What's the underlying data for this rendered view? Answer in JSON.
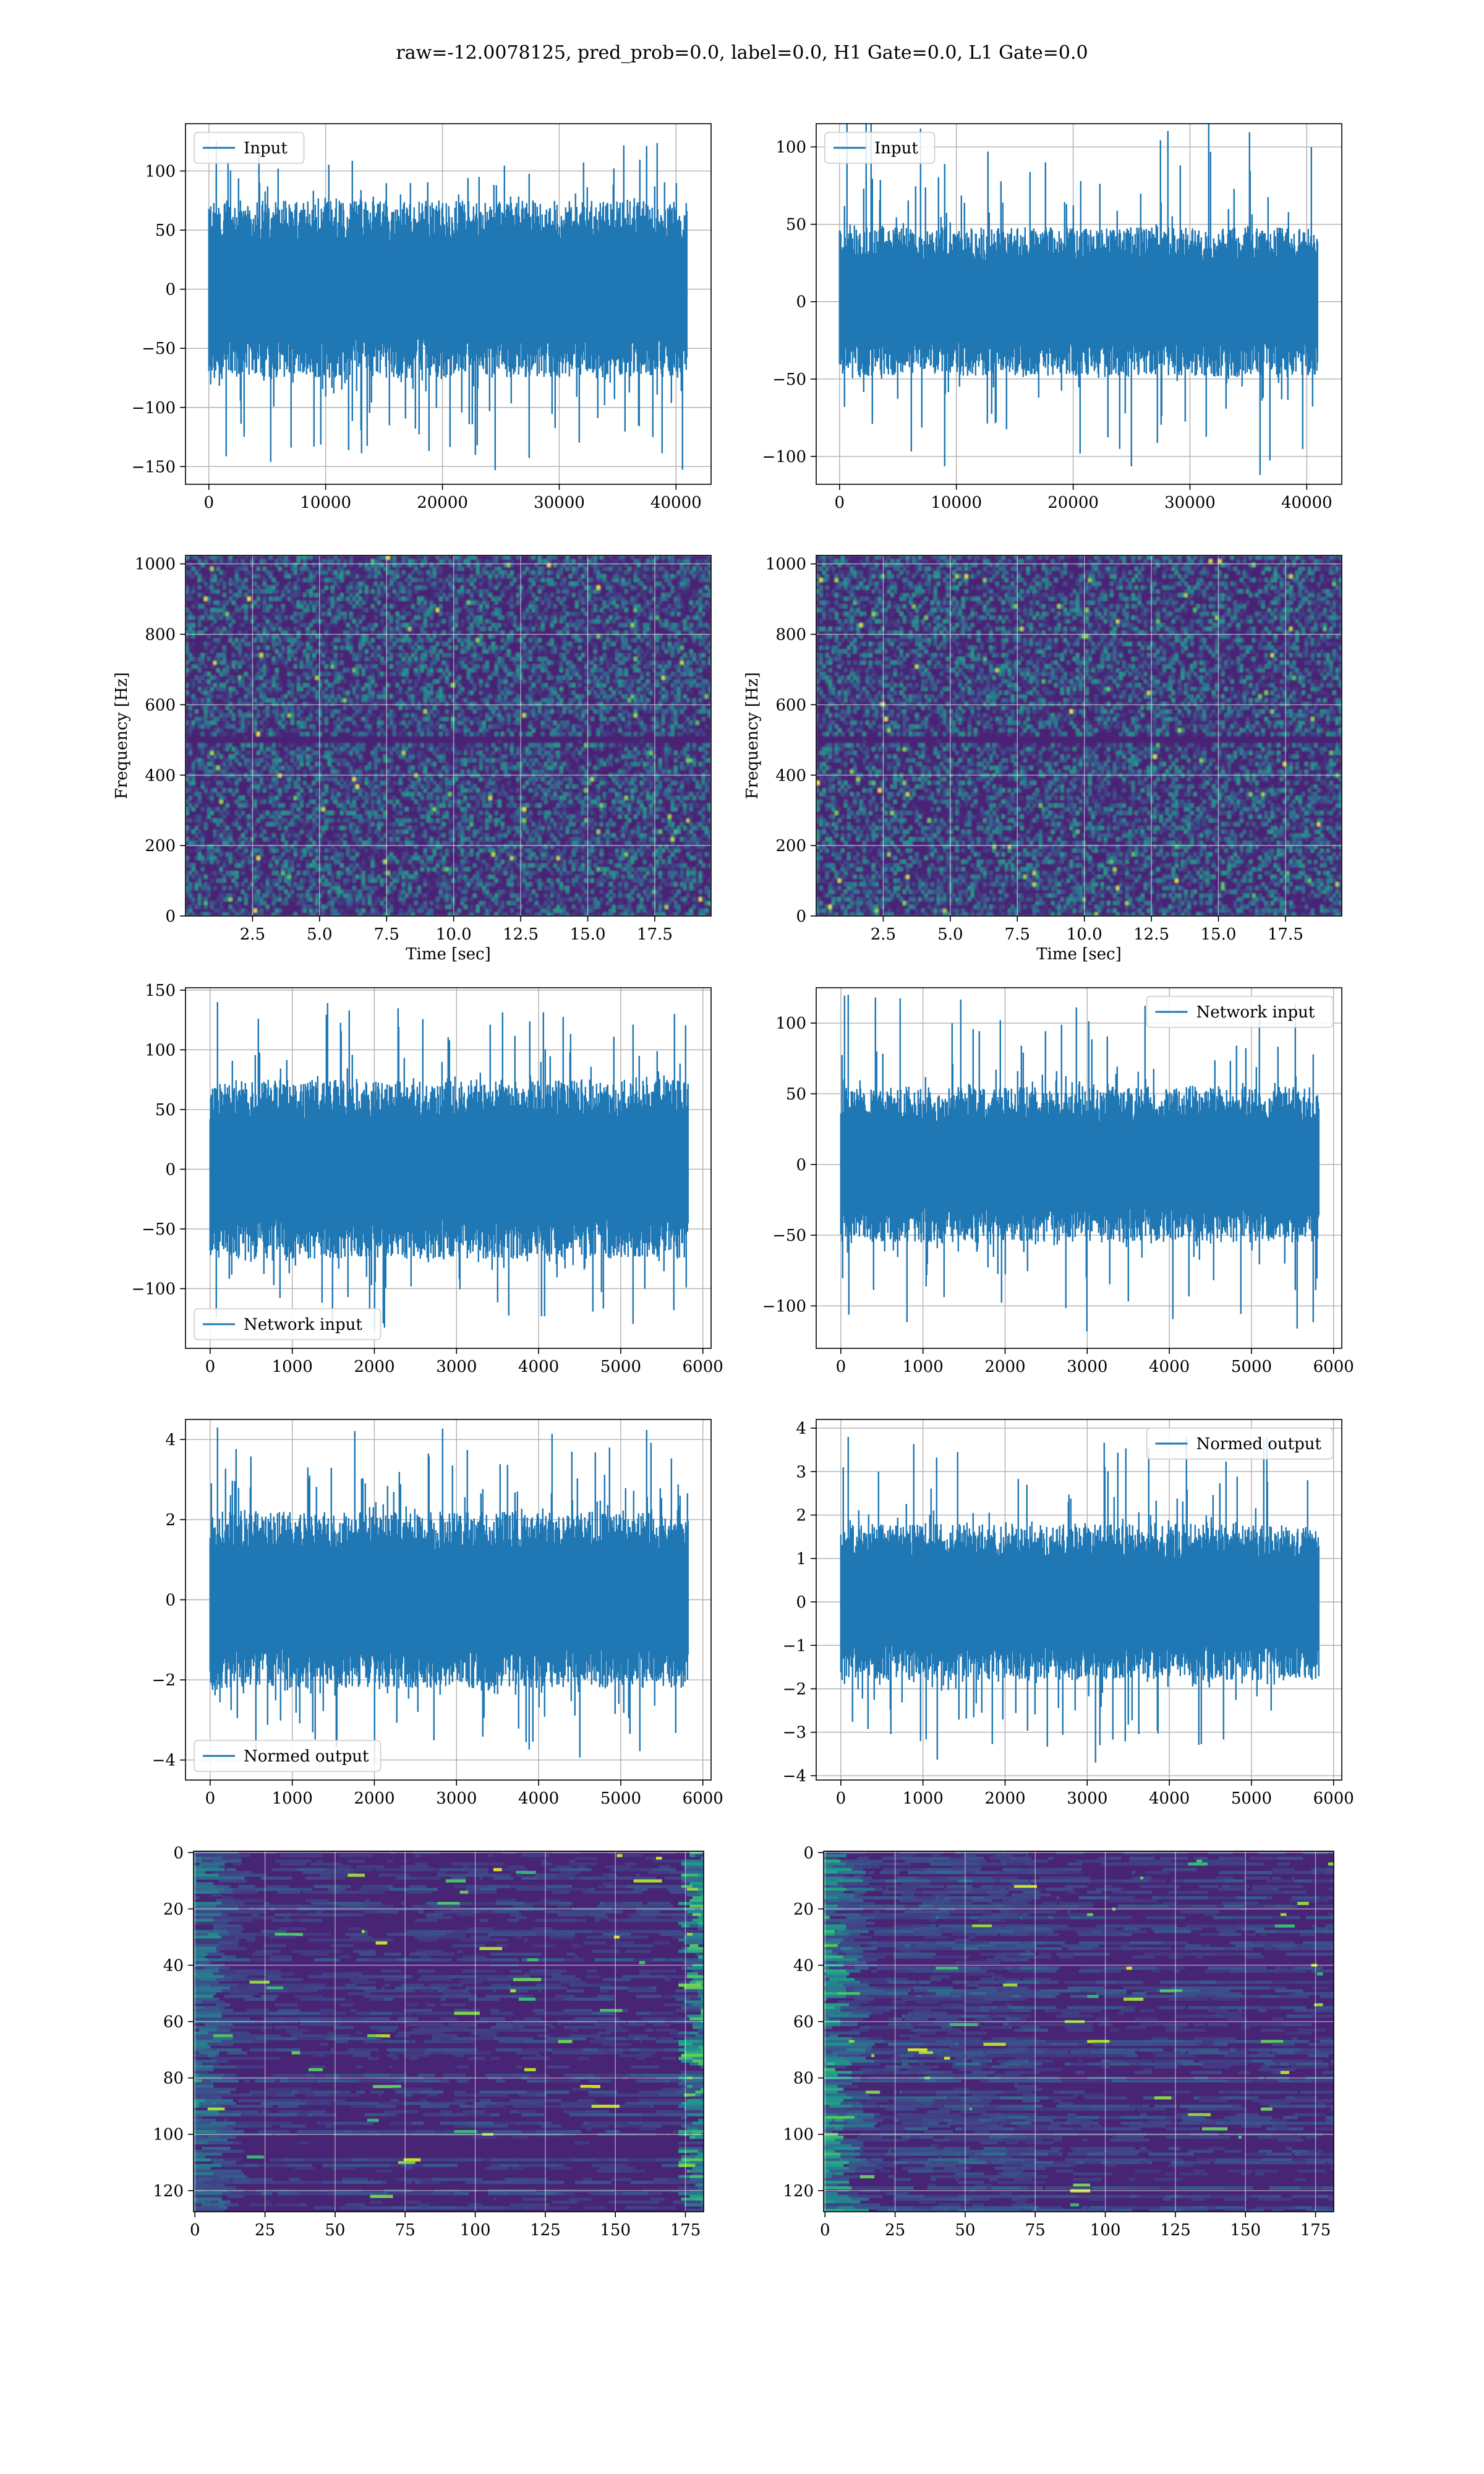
{
  "figure": {
    "suptitle": "raw=-12.0078125, pred_prob=0.0, label=0.0, H1 Gate=0.0, L1 Gate=0.0",
    "colors": {
      "line": "#1f77b4",
      "grid": "#b0b0b0",
      "viridis": [
        "#440154",
        "#482878",
        "#3e4989",
        "#31688e",
        "#26828e",
        "#1f9e89",
        "#35b779",
        "#6ece58",
        "#b5de2b",
        "#fde725"
      ]
    }
  },
  "chart_data": [
    {
      "id": "p0",
      "type": "line",
      "legend": [
        "Input"
      ],
      "legend_loc": "upper-left",
      "xlim": [
        -2000,
        43000
      ],
      "ylim": [
        -165,
        140
      ],
      "xticks": [
        0,
        10000,
        20000,
        30000,
        40000
      ],
      "yticks": [
        -150,
        -100,
        -50,
        0,
        50,
        100
      ],
      "xticklabels": [
        "0",
        "10000",
        "20000",
        "30000",
        "40000"
      ],
      "yticklabels": [
        "−150",
        "−100",
        "−50",
        "0",
        "50",
        "100"
      ],
      "grid": true,
      "signal": {
        "n": 40960,
        "env_upper": 75,
        "env_lower": -75,
        "max": 125,
        "min": -153,
        "min_at": 24500
      }
    },
    {
      "id": "p1",
      "type": "line",
      "legend": [
        "Input"
      ],
      "legend_loc": "upper-left",
      "xlim": [
        -2000,
        43000
      ],
      "ylim": [
        -118,
        115
      ],
      "xticks": [
        0,
        10000,
        20000,
        30000,
        40000
      ],
      "yticks": [
        -100,
        -50,
        0,
        50,
        100
      ],
      "xticklabels": [
        "0",
        "10000",
        "20000",
        "30000",
        "40000"
      ],
      "yticklabels": [
        "−100",
        "−50",
        "0",
        "50",
        "100"
      ],
      "grid": true,
      "signal": {
        "n": 40960,
        "env_upper": 48,
        "env_lower": -48,
        "max": 120,
        "min": -112,
        "min_at": 36000
      }
    },
    {
      "id": "p2",
      "type": "heatmap",
      "ylabel": "Frequency [Hz]",
      "xlabel": "Time [sec]",
      "xlim": [
        0,
        19.6
      ],
      "ylim": [
        0,
        1024
      ],
      "xticks": [
        2.5,
        5.0,
        7.5,
        10.0,
        12.5,
        15.0,
        17.5
      ],
      "yticks": [
        0,
        200,
        400,
        600,
        800,
        1000
      ],
      "xticklabels": [
        "2.5",
        "5.0",
        "7.5",
        "10.0",
        "12.5",
        "15.0",
        "17.5"
      ],
      "yticklabels": [
        "0",
        "200",
        "400",
        "600",
        "800",
        "1000"
      ],
      "grid": true,
      "colormap": "viridis"
    },
    {
      "id": "p3",
      "type": "heatmap",
      "ylabel": "Frequency [Hz]",
      "xlabel": "Time [sec]",
      "xlim": [
        0,
        19.6
      ],
      "ylim": [
        0,
        1024
      ],
      "xticks": [
        2.5,
        5.0,
        7.5,
        10.0,
        12.5,
        15.0,
        17.5
      ],
      "yticks": [
        0,
        200,
        400,
        600,
        800,
        1000
      ],
      "xticklabels": [
        "2.5",
        "5.0",
        "7.5",
        "10.0",
        "12.5",
        "15.0",
        "17.5"
      ],
      "yticklabels": [
        "0",
        "200",
        "400",
        "600",
        "800",
        "1000"
      ],
      "grid": true,
      "colormap": "viridis"
    },
    {
      "id": "p4",
      "type": "line",
      "legend": [
        "Network input"
      ],
      "legend_loc": "lower-left",
      "xlim": [
        -300,
        6100
      ],
      "ylim": [
        -150,
        152
      ],
      "xticks": [
        0,
        1000,
        2000,
        3000,
        4000,
        5000,
        6000
      ],
      "yticks": [
        -100,
        -50,
        0,
        50,
        100,
        150
      ],
      "xticklabels": [
        "0",
        "1000",
        "2000",
        "3000",
        "4000",
        "5000",
        "6000"
      ],
      "yticklabels": [
        "−100",
        "−50",
        "0",
        "50",
        "100",
        "150"
      ],
      "grid": true,
      "signal": {
        "n": 5830,
        "env_upper": 75,
        "env_lower": -75,
        "max": 140,
        "min": -135,
        "min_at": 2000
      }
    },
    {
      "id": "p5",
      "type": "line",
      "legend": [
        "Network input"
      ],
      "legend_loc": "upper-right",
      "xlim": [
        -300,
        6100
      ],
      "ylim": [
        -130,
        125
      ],
      "xticks": [
        0,
        1000,
        2000,
        3000,
        4000,
        5000,
        6000
      ],
      "yticks": [
        -100,
        -50,
        0,
        50,
        100
      ],
      "xticklabels": [
        "0",
        "1000",
        "2000",
        "3000",
        "4000",
        "5000",
        "6000"
      ],
      "yticklabels": [
        "−100",
        "−50",
        "0",
        "50",
        "100"
      ],
      "grid": true,
      "signal": {
        "n": 5830,
        "env_upper": 55,
        "env_lower": -55,
        "max": 120,
        "min": -118,
        "min_at": 3000
      }
    },
    {
      "id": "p6",
      "type": "line",
      "legend": [
        "Normed output"
      ],
      "legend_loc": "lower-left",
      "xlim": [
        -300,
        6100
      ],
      "ylim": [
        -4.5,
        4.5
      ],
      "xticks": [
        0,
        1000,
        2000,
        3000,
        4000,
        5000,
        6000
      ],
      "yticks": [
        -4,
        -2,
        0,
        2,
        4
      ],
      "xticklabels": [
        "0",
        "1000",
        "2000",
        "3000",
        "4000",
        "5000",
        "6000"
      ],
      "yticklabels": [
        "−4",
        "−2",
        "0",
        "2",
        "4"
      ],
      "grid": true,
      "signal": {
        "n": 5830,
        "env_upper": 2.2,
        "env_lower": -2.2,
        "max": 4.3,
        "min": -4.1,
        "min_at": 2000
      }
    },
    {
      "id": "p7",
      "type": "line",
      "legend": [
        "Normed output"
      ],
      "legend_loc": "upper-right",
      "xlim": [
        -300,
        6100
      ],
      "ylim": [
        -4.1,
        4.2
      ],
      "xticks": [
        0,
        1000,
        2000,
        3000,
        4000,
        5000,
        6000
      ],
      "yticks": [
        -4,
        -3,
        -2,
        -1,
        0,
        1,
        2,
        3,
        4
      ],
      "xticklabels": [
        "0",
        "1000",
        "2000",
        "3000",
        "4000",
        "5000",
        "6000"
      ],
      "yticklabels": [
        "−4",
        "−3",
        "−2",
        "−1",
        "0",
        "1",
        "2",
        "3",
        "4"
      ],
      "grid": true,
      "signal": {
        "n": 5830,
        "env_upper": 1.8,
        "env_lower": -1.8,
        "max": 3.8,
        "min": -3.7,
        "min_at": 3100
      }
    },
    {
      "id": "p8",
      "type": "heatmap",
      "inverted_y": true,
      "xlim": [
        -0.5,
        181.5
      ],
      "ylim": [
        127.5,
        -0.5
      ],
      "xticks": [
        0,
        25,
        50,
        75,
        100,
        125,
        150,
        175
      ],
      "yticks": [
        0,
        20,
        40,
        60,
        80,
        100,
        120
      ],
      "xticklabels": [
        "0",
        "25",
        "50",
        "75",
        "100",
        "125",
        "150",
        "175"
      ],
      "yticklabels": [
        "0",
        "20",
        "40",
        "60",
        "80",
        "100",
        "120"
      ],
      "grid": true,
      "colormap": "viridis"
    },
    {
      "id": "p9",
      "type": "heatmap",
      "inverted_y": true,
      "xlim": [
        -0.5,
        181.5
      ],
      "ylim": [
        127.5,
        -0.5
      ],
      "xticks": [
        0,
        25,
        50,
        75,
        100,
        125,
        150,
        175
      ],
      "yticks": [
        0,
        20,
        40,
        60,
        80,
        100,
        120
      ],
      "xticklabels": [
        "0",
        "25",
        "50",
        "75",
        "100",
        "125",
        "150",
        "175"
      ],
      "yticklabels": [
        "0",
        "20",
        "40",
        "60",
        "80",
        "100",
        "120"
      ],
      "grid": true,
      "colormap": "viridis"
    }
  ]
}
